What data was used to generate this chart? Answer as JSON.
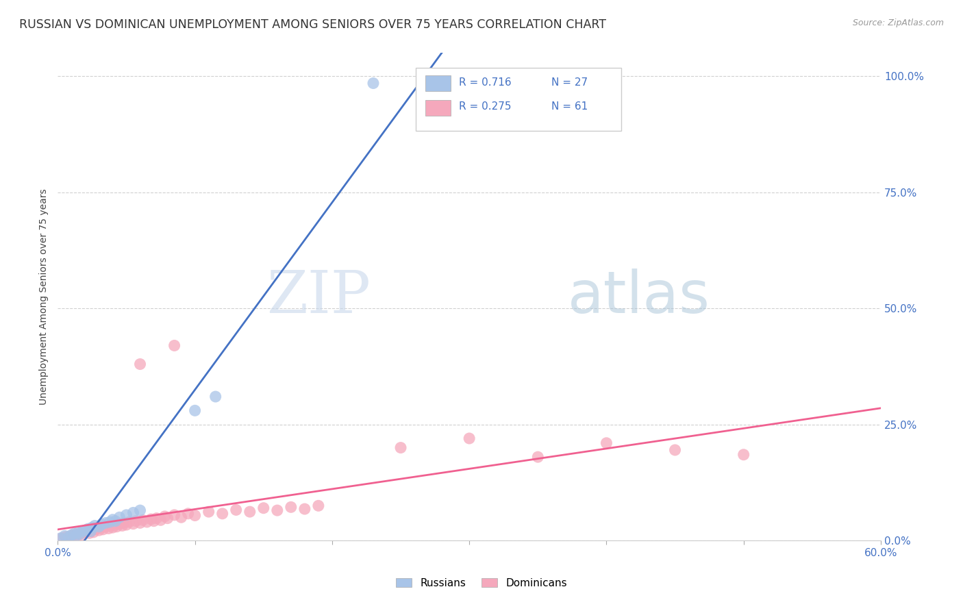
{
  "title": "RUSSIAN VS DOMINICAN UNEMPLOYMENT AMONG SENIORS OVER 75 YEARS CORRELATION CHART",
  "source": "Source: ZipAtlas.com",
  "ylabel": "Unemployment Among Seniors over 75 years",
  "ytick_labels": [
    "0.0%",
    "25.0%",
    "50.0%",
    "75.0%",
    "100.0%"
  ],
  "ytick_vals": [
    0.0,
    0.25,
    0.5,
    0.75,
    1.0
  ],
  "legend_russian": {
    "R": "0.716",
    "N": "27"
  },
  "legend_dominican": {
    "R": "0.275",
    "N": "61"
  },
  "russian_color": "#a8c4e8",
  "dominican_color": "#f5a8bc",
  "russian_line_color": "#4472c4",
  "dominican_line_color": "#f06090",
  "blue_text_color": "#4472c4",
  "xmin": 0.0,
  "xmax": 0.6,
  "ymin": 0.0,
  "ymax": 1.05,
  "background_color": "#ffffff",
  "grid_color": "#d0d0d0",
  "russian_points": [
    [
      0.002,
      0.005
    ],
    [
      0.005,
      0.01
    ],
    [
      0.008,
      0.008
    ],
    [
      0.01,
      0.012
    ],
    [
      0.012,
      0.015
    ],
    [
      0.013,
      0.01
    ],
    [
      0.015,
      0.018
    ],
    [
      0.016,
      0.014
    ],
    [
      0.018,
      0.02
    ],
    [
      0.02,
      0.022
    ],
    [
      0.022,
      0.025
    ],
    [
      0.024,
      0.02
    ],
    [
      0.025,
      0.028
    ],
    [
      0.027,
      0.032
    ],
    [
      0.03,
      0.03
    ],
    [
      0.032,
      0.035
    ],
    [
      0.035,
      0.038
    ],
    [
      0.038,
      0.04
    ],
    [
      0.04,
      0.045
    ],
    [
      0.042,
      0.042
    ],
    [
      0.045,
      0.05
    ],
    [
      0.05,
      0.055
    ],
    [
      0.055,
      0.06
    ],
    [
      0.06,
      0.065
    ],
    [
      0.1,
      0.28
    ],
    [
      0.115,
      0.31
    ],
    [
      0.23,
      0.985
    ]
  ],
  "dominican_points": [
    [
      0.003,
      0.005
    ],
    [
      0.006,
      0.008
    ],
    [
      0.008,
      0.006
    ],
    [
      0.01,
      0.01
    ],
    [
      0.012,
      0.012
    ],
    [
      0.014,
      0.01
    ],
    [
      0.015,
      0.014
    ],
    [
      0.017,
      0.016
    ],
    [
      0.018,
      0.012
    ],
    [
      0.02,
      0.018
    ],
    [
      0.022,
      0.02
    ],
    [
      0.023,
      0.016
    ],
    [
      0.025,
      0.022
    ],
    [
      0.026,
      0.018
    ],
    [
      0.028,
      0.025
    ],
    [
      0.03,
      0.022
    ],
    [
      0.032,
      0.028
    ],
    [
      0.033,
      0.024
    ],
    [
      0.035,
      0.03
    ],
    [
      0.037,
      0.026
    ],
    [
      0.038,
      0.032
    ],
    [
      0.04,
      0.028
    ],
    [
      0.042,
      0.034
    ],
    [
      0.043,
      0.03
    ],
    [
      0.045,
      0.036
    ],
    [
      0.047,
      0.032
    ],
    [
      0.048,
      0.038
    ],
    [
      0.05,
      0.034
    ],
    [
      0.052,
      0.04
    ],
    [
      0.055,
      0.036
    ],
    [
      0.057,
      0.042
    ],
    [
      0.06,
      0.038
    ],
    [
      0.062,
      0.044
    ],
    [
      0.065,
      0.04
    ],
    [
      0.068,
      0.046
    ],
    [
      0.07,
      0.042
    ],
    [
      0.072,
      0.048
    ],
    [
      0.075,
      0.044
    ],
    [
      0.078,
      0.052
    ],
    [
      0.08,
      0.048
    ],
    [
      0.085,
      0.055
    ],
    [
      0.09,
      0.05
    ],
    [
      0.095,
      0.058
    ],
    [
      0.1,
      0.054
    ],
    [
      0.11,
      0.062
    ],
    [
      0.12,
      0.058
    ],
    [
      0.13,
      0.066
    ],
    [
      0.14,
      0.062
    ],
    [
      0.15,
      0.07
    ],
    [
      0.16,
      0.065
    ],
    [
      0.17,
      0.072
    ],
    [
      0.18,
      0.068
    ],
    [
      0.19,
      0.075
    ],
    [
      0.06,
      0.38
    ],
    [
      0.085,
      0.42
    ],
    [
      0.25,
      0.2
    ],
    [
      0.3,
      0.22
    ],
    [
      0.35,
      0.18
    ],
    [
      0.4,
      0.21
    ],
    [
      0.45,
      0.195
    ],
    [
      0.5,
      0.185
    ]
  ]
}
